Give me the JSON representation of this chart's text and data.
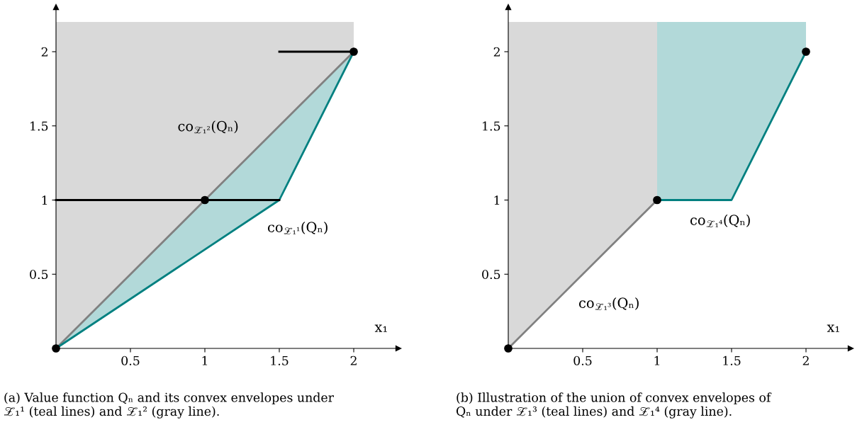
{
  "chart_data": [
    {
      "type": "line",
      "xlabel": "x₁",
      "xlim": [
        0,
        2.3
      ],
      "ylim": [
        0,
        2.3
      ],
      "xticks": [
        0.5,
        1,
        1.5,
        2
      ],
      "yticks": [
        0.5,
        1,
        1.5,
        2
      ],
      "grid": false,
      "legend": false,
      "line_style": "solid",
      "series": [
        {
          "color": "#808080",
          "x": [
            0,
            2
          ],
          "values": [
            0,
            2
          ],
          "lower": [
            0,
            2
          ],
          "upper": [
            2.2,
            2.2
          ]
        },
        {
          "color": "#008080",
          "x": [
            0,
            1.5,
            2
          ],
          "values": [
            0,
            1,
            2
          ],
          "lower": [
            0,
            1,
            2
          ],
          "upper": [
            0,
            1.5,
            2
          ]
        },
        {
          "color": "#000000",
          "x": [
            0,
            1.5
          ],
          "values": [
            1,
            1
          ]
        },
        {
          "color": "#000000",
          "x": [
            1.5,
            2
          ],
          "values": [
            2,
            2
          ]
        },
        {
          "type": "scatter",
          "color": "#000000",
          "x": [
            0,
            1,
            2
          ],
          "values": [
            0,
            1,
            2
          ],
          "marker": "circle"
        }
      ],
      "annotations": [
        "co$_{𝒵₁²}$(Qₙ)",
        "co$_{𝒵₁¹}$(Qₙ)",
        "(a) Value function Qₙ and its convex envelopes under\n𝒵₁¹ (teal lines) and 𝒵₁² (gray line)."
      ]
    },
    {
      "type": "line",
      "xlabel": "x₁",
      "xlim": [
        0,
        2.3
      ],
      "ylim": [
        0,
        2.3
      ],
      "xticks": [
        0.5,
        1,
        1.5,
        2
      ],
      "yticks": [
        0.5,
        1,
        1.5,
        2
      ],
      "grid": false,
      "legend": false,
      "line_style": "solid",
      "series": [
        {
          "color": "#808080",
          "x": [
            0,
            1
          ],
          "values": [
            0,
            1
          ],
          "lower": [
            0,
            1
          ],
          "upper": [
            2.2,
            2.2
          ]
        },
        {
          "color": "#008080",
          "x": [
            1,
            1.5,
            2
          ],
          "values": [
            1,
            1,
            2
          ],
          "lower": [
            1,
            1,
            2
          ],
          "upper": [
            2.2,
            2.2,
            2.2
          ]
        },
        {
          "type": "scatter",
          "color": "#000000",
          "x": [
            0,
            1,
            2
          ],
          "values": [
            0,
            1,
            2
          ],
          "marker": "circle"
        }
      ],
      "annotations": [
        "co$_{𝒵₁⁴}$(Qₙ)",
        "co$_{𝒵₁³}$(Qₙ)",
        "(b) Illustration of the union of convex envelopes of\nQₙ under 𝒵₁³ (teal lines) and 𝒵₁⁴ (gray line)."
      ]
    }
  ]
}
